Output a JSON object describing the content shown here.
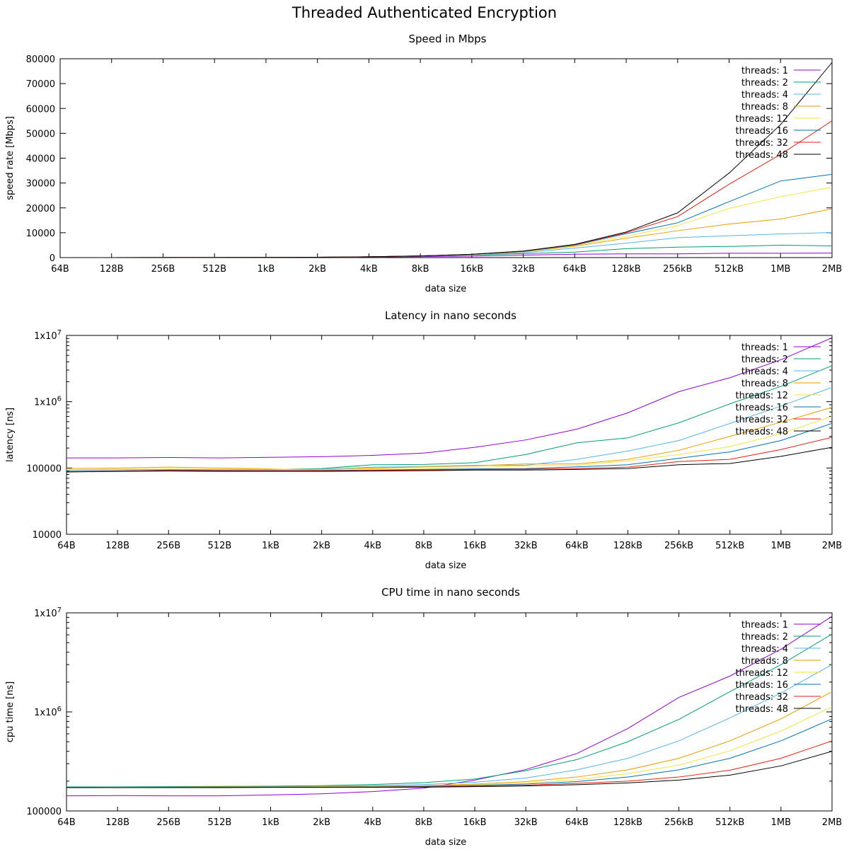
{
  "title": "Threaded Authenticated Encryption",
  "series_colors": [
    "#9400d3",
    "#009e73",
    "#56b4e9",
    "#e69f00",
    "#f0e442",
    "#0072b2",
    "#e51e10",
    "#000000"
  ],
  "chart_data": [
    {
      "type": "line",
      "title": "Speed in Mbps",
      "xlabel": "data size",
      "ylabel": "speed rate [Mbps]",
      "x": [
        "64B",
        "128B",
        "256B",
        "512B",
        "1kB",
        "2kB",
        "4kB",
        "8kB",
        "16kB",
        "32kB",
        "64kB",
        "128kB",
        "256kB",
        "512kB",
        "1MB",
        "2MB"
      ],
      "yscale": "linear",
      "ylim": [
        0,
        80000
      ],
      "yticks": [
        {
          "value": 0,
          "label": "0"
        },
        {
          "value": 10000,
          "label": "10000"
        },
        {
          "value": 20000,
          "label": "20000"
        },
        {
          "value": 30000,
          "label": "30000"
        },
        {
          "value": 40000,
          "label": "40000"
        },
        {
          "value": 50000,
          "label": "50000"
        },
        {
          "value": 60000,
          "label": "60000"
        },
        {
          "value": 70000,
          "label": "70000"
        },
        {
          "value": 80000,
          "label": "80000"
        }
      ],
      "legend_position": "top-right",
      "series": [
        {
          "name": "threads: 1",
          "values": [
            4,
            7,
            14,
            29,
            55,
            110,
            210,
            380,
            620,
            980,
            1350,
            1500,
            1500,
            1750,
            1750,
            1800
          ]
        },
        {
          "name": "threads: 2",
          "values": [
            5,
            10,
            20,
            40,
            80,
            160,
            300,
            560,
            1050,
            1600,
            2200,
            3600,
            4200,
            4500,
            5000,
            4700
          ]
        },
        {
          "name": "threads: 4",
          "values": [
            5,
            10,
            20,
            40,
            80,
            160,
            320,
            620,
            1150,
            2000,
            3800,
            5800,
            8000,
            8800,
            9500,
            10100
          ]
        },
        {
          "name": "threads: 8",
          "values": [
            5,
            10,
            20,
            40,
            80,
            160,
            330,
            650,
            1250,
            2300,
            4500,
            7800,
            10800,
            13500,
            15500,
            19600
          ]
        },
        {
          "name": "threads: 12",
          "values": [
            5,
            10,
            20,
            40,
            80,
            160,
            330,
            650,
            1300,
            2400,
            4800,
            8600,
            12800,
            19800,
            24500,
            28300
          ]
        },
        {
          "name": "threads: 16",
          "values": [
            5,
            10,
            20,
            40,
            80,
            160,
            330,
            660,
            1300,
            2500,
            5000,
            9600,
            14000,
            22500,
            30800,
            33500
          ]
        },
        {
          "name": "threads: 32",
          "values": [
            5,
            10,
            20,
            40,
            80,
            160,
            330,
            660,
            1320,
            2600,
            5200,
            10000,
            16500,
            29500,
            41500,
            55000
          ]
        },
        {
          "name": "threads: 48",
          "values": [
            5,
            10,
            20,
            40,
            80,
            160,
            330,
            660,
            1330,
            2650,
            5300,
            10300,
            18000,
            34000,
            53500,
            78500
          ]
        }
      ]
    },
    {
      "type": "line",
      "title": "Latency in nano seconds",
      "xlabel": "data size",
      "ylabel": "latency [ns]",
      "x": [
        "64B",
        "128B",
        "256B",
        "512B",
        "1kB",
        "2kB",
        "4kB",
        "8kB",
        "16kB",
        "32kB",
        "64kB",
        "128kB",
        "256kB",
        "512kB",
        "1MB",
        "2MB"
      ],
      "yscale": "log",
      "ylim": [
        10000,
        10000000
      ],
      "yticks": [
        {
          "value": 10000,
          "label": "10000"
        },
        {
          "value": 100000,
          "label": "100000"
        },
        {
          "value": 1000000,
          "label": "1x10^6"
        },
        {
          "value": 10000000,
          "label": "1x10^7"
        }
      ],
      "legend_position": "top-right",
      "series": [
        {
          "name": "threads: 1",
          "values": [
            142000,
            142000,
            144000,
            142000,
            145000,
            148000,
            155000,
            168000,
            205000,
            265000,
            385000,
            680000,
            1420000,
            2300000,
            4300000,
            9200000
          ]
        },
        {
          "name": "threads: 2",
          "values": [
            92000,
            94000,
            96000,
            94000,
            95000,
            98000,
            112000,
            113000,
            120000,
            160000,
            240000,
            285000,
            480000,
            930000,
            1700000,
            3500000
          ]
        },
        {
          "name": "threads: 4",
          "values": [
            92000,
            94000,
            96000,
            94000,
            95000,
            96000,
            103000,
            105000,
            110000,
            110000,
            135000,
            180000,
            260000,
            470000,
            860000,
            1650000
          ]
        },
        {
          "name": "threads: 8",
          "values": [
            98000,
            100000,
            103000,
            100000,
            97000,
            93000,
            100000,
            104000,
            108000,
            115000,
            115000,
            135000,
            185000,
            300000,
            490000,
            820000
          ]
        },
        {
          "name": "threads: 12",
          "values": [
            94000,
            96000,
            97000,
            96000,
            96000,
            95000,
            97000,
            99000,
            102000,
            108000,
            110000,
            128000,
            160000,
            210000,
            330000,
            600000
          ]
        },
        {
          "name": "threads: 16",
          "values": [
            88000,
            90000,
            93000,
            92000,
            92000,
            92000,
            93000,
            95000,
            97000,
            98000,
            104000,
            112000,
            140000,
            175000,
            260000,
            470000
          ]
        },
        {
          "name": "threads: 32",
          "values": [
            88000,
            90000,
            92000,
            91000,
            91000,
            91000,
            92000,
            93000,
            95000,
            96000,
            98000,
            103000,
            125000,
            135000,
            190000,
            290000
          ]
        },
        {
          "name": "threads: 48",
          "values": [
            87000,
            89000,
            90000,
            89000,
            89000,
            89000,
            90000,
            91000,
            93000,
            93000,
            95000,
            98000,
            112000,
            117000,
            150000,
            205000
          ]
        }
      ]
    },
    {
      "type": "line",
      "title": "CPU time in nano seconds",
      "xlabel": "data size",
      "ylabel": "cpu time [ns]",
      "x": [
        "64B",
        "128B",
        "256B",
        "512B",
        "1kB",
        "2kB",
        "4kB",
        "8kB",
        "16kB",
        "32kB",
        "64kB",
        "128kB",
        "256kB",
        "512kB",
        "1MB",
        "2MB"
      ],
      "yscale": "log",
      "ylim": [
        100000,
        10000000
      ],
      "yticks": [
        {
          "value": 100000,
          "label": "100000"
        },
        {
          "value": 1000000,
          "label": "1x10^6"
        },
        {
          "value": 10000000,
          "label": "1x10^7"
        }
      ],
      "legend_position": "top-right",
      "series": [
        {
          "name": "threads: 1",
          "values": [
            142000,
            143000,
            142000,
            142000,
            145000,
            149000,
            157000,
            170000,
            205000,
            262000,
            380000,
            680000,
            1400000,
            2300000,
            4300000,
            9200000
          ]
        },
        {
          "name": "threads: 2",
          "values": [
            175000,
            175000,
            176000,
            177000,
            178000,
            180000,
            185000,
            193000,
            210000,
            255000,
            330000,
            500000,
            840000,
            1600000,
            3000000,
            6100000
          ]
        },
        {
          "name": "threads: 4",
          "values": [
            172000,
            173000,
            174000,
            175000,
            176000,
            177000,
            180000,
            185000,
            195000,
            215000,
            260000,
            340000,
            510000,
            870000,
            1550000,
            3000000
          ]
        },
        {
          "name": "threads: 8",
          "values": [
            172000,
            173000,
            174000,
            175000,
            175000,
            176000,
            178000,
            180000,
            187000,
            198000,
            220000,
            260000,
            340000,
            510000,
            850000,
            1600000
          ]
        },
        {
          "name": "threads: 12",
          "values": [
            172000,
            172000,
            173000,
            174000,
            174000,
            175000,
            176000,
            178000,
            183000,
            192000,
            207000,
            238000,
            290000,
            405000,
            640000,
            1130000
          ]
        },
        {
          "name": "threads: 16",
          "values": [
            172000,
            172000,
            173000,
            173000,
            174000,
            174000,
            175000,
            177000,
            181000,
            187000,
            198000,
            220000,
            260000,
            340000,
            510000,
            850000
          ]
        },
        {
          "name": "threads: 32",
          "values": [
            172000,
            172000,
            172000,
            173000,
            173000,
            173000,
            174000,
            175000,
            178000,
            182000,
            190000,
            200000,
            220000,
            258000,
            340000,
            510000
          ]
        },
        {
          "name": "threads: 48",
          "values": [
            172000,
            172000,
            172000,
            172000,
            173000,
            173000,
            173000,
            174000,
            176000,
            179000,
            184000,
            192000,
            205000,
            230000,
            285000,
            400000
          ]
        }
      ]
    }
  ]
}
